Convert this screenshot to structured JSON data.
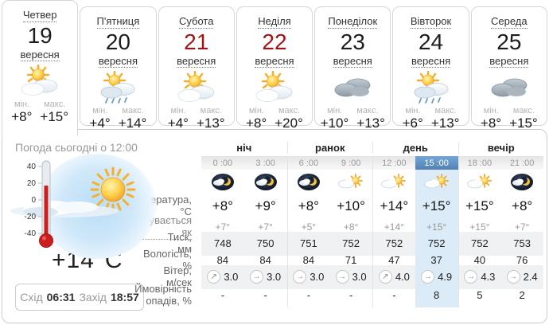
{
  "cards": {
    "min_label": "мін.",
    "max_label": "макс.",
    "days": [
      {
        "name": "Четвер",
        "date": "19",
        "month": "вересня",
        "icon": "sun-clouds",
        "min": "+8°",
        "max": "+15°",
        "active": true,
        "weekend": false
      },
      {
        "name": "П'ятниця",
        "date": "20",
        "month": "вересня",
        "icon": "sun-rain",
        "min": "+4°",
        "max": "+14°",
        "active": false,
        "weekend": false
      },
      {
        "name": "Субота",
        "date": "21",
        "month": "вересня",
        "icon": "sun-clouds",
        "min": "+4°",
        "max": "+13°",
        "active": false,
        "weekend": true
      },
      {
        "name": "Неділя",
        "date": "22",
        "month": "вересня",
        "icon": "sun-clouds",
        "min": "+8°",
        "max": "+20°",
        "active": false,
        "weekend": true
      },
      {
        "name": "Понеділок",
        "date": "23",
        "month": "вересня",
        "icon": "clouds",
        "min": "+10°",
        "max": "+13°",
        "active": false,
        "weekend": false
      },
      {
        "name": "Вівторок",
        "date": "24",
        "month": "вересня",
        "icon": "sun-rain",
        "min": "+6°",
        "max": "+13°",
        "active": false,
        "weekend": false
      },
      {
        "name": "Середа",
        "date": "25",
        "month": "вересня",
        "icon": "clouds",
        "min": "+8°",
        "max": "+15°",
        "active": false,
        "weekend": false
      }
    ]
  },
  "today": {
    "title": "Погода сьогодні о 12:00",
    "temperature": "+14°C",
    "thermometer_scale": [
      "40",
      "20",
      "0",
      "-20",
      "-40"
    ],
    "sunrise_label": "Схід",
    "sunrise_time": "06:31",
    "sunset_label": "Захід",
    "sunset_time": "18:57"
  },
  "table": {
    "groups": [
      "ніч",
      "ранок",
      "день",
      "вечір"
    ],
    "hours": [
      "0 :00",
      "3 :00",
      "6 :00",
      "9 :00",
      "12 :00",
      "15 :00",
      "18 :00",
      "21 :00"
    ],
    "highlighted_index": 5,
    "hour_icons": [
      "night-cloud",
      "night-cloud",
      "night-cloud",
      "cloud-sun",
      "cloud-sun",
      "cloud-sun",
      "cloud-sun",
      "night-cloud"
    ],
    "temperature": {
      "label": "Температура, °C",
      "values": [
        "+8°",
        "+9°",
        "+8°",
        "+10°",
        "+14°",
        "+15°",
        "+15°",
        "+8°"
      ]
    },
    "feels_like": {
      "label": "відчувається як",
      "values": [
        "+7°",
        "+7°",
        "+5°",
        "+8°",
        "+14°",
        "+15°",
        "+15°",
        "+7°"
      ]
    },
    "pressure": {
      "label": "Тиск, мм",
      "values": [
        "748",
        "750",
        "751",
        "752",
        "752",
        "752",
        "752",
        "753"
      ]
    },
    "humidity": {
      "label": "Вологість, %",
      "values": [
        "84",
        "84",
        "84",
        "71",
        "47",
        "37",
        "40",
        "76"
      ]
    },
    "wind": {
      "label": "Вітер, м/сек",
      "values": [
        "3.0",
        "3.0",
        "3.0",
        "3.0",
        "4.0",
        "4.9",
        "4.3",
        "2.4"
      ],
      "directions": [
        "ne",
        "e",
        "e",
        "e",
        "ne",
        "e",
        "e",
        "e"
      ]
    },
    "precipitation": {
      "label": "Ймовірність опадів, %",
      "values": [
        "-",
        "-",
        "-",
        "-",
        "-",
        "8",
        "5",
        "2"
      ]
    }
  },
  "colors": {
    "weekend_red": "#a21414",
    "highlight_header_blue": "#5b8fc4",
    "highlight_column_blue": "#dcebf8",
    "row_stripe_gray": "#f0f1f2"
  }
}
